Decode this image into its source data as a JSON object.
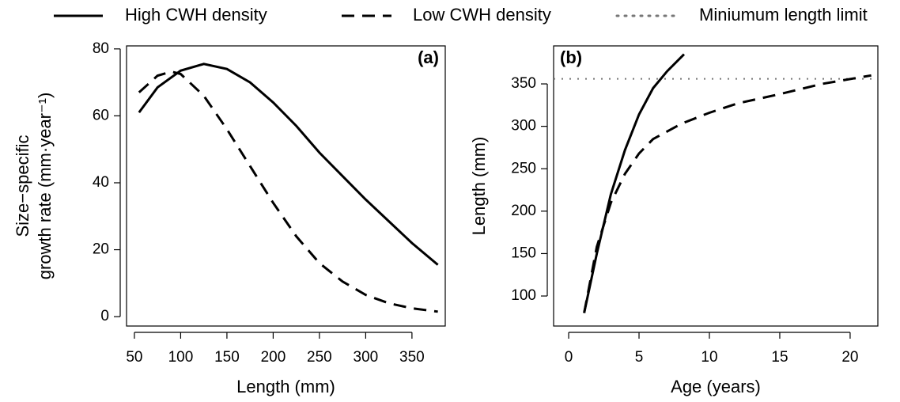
{
  "chart_data": [
    {
      "type": "line",
      "panel_label": "(a)",
      "x_label": "Length (mm)",
      "y_label": [
        "Size−specific",
        "growth rate (mm·year⁻¹)"
      ],
      "xlim": [
        41.5,
        386
      ],
      "ylim": [
        -2.8,
        80.9
      ],
      "xticks": [
        50,
        100,
        150,
        200,
        250,
        300,
        350
      ],
      "yticks": [
        0,
        20,
        40,
        60,
        80
      ],
      "series": [
        {
          "color": "#000000",
          "linestyle": "solid",
          "x": [
            55,
            75,
            100,
            125,
            150,
            175,
            200,
            225,
            250,
            275,
            300,
            325,
            350,
            378
          ],
          "values": [
            61,
            68.5,
            73.5,
            75.5,
            74,
            70,
            64,
            57,
            49,
            42,
            35,
            28.5,
            22,
            15.5
          ]
        },
        {
          "color": "#000000",
          "linestyle": "dashed",
          "x": [
            55,
            75,
            90,
            100,
            125,
            150,
            175,
            200,
            225,
            250,
            275,
            300,
            325,
            350,
            378
          ],
          "values": [
            67,
            72,
            73.2,
            72.5,
            66,
            56,
            45,
            34,
            24,
            16,
            10.5,
            6.5,
            4,
            2.5,
            1.5
          ]
        }
      ]
    },
    {
      "type": "line",
      "panel_label": "(b)",
      "x_label": "Age (years)",
      "y_label": [
        "Length (mm)"
      ],
      "xlim": [
        -1.07,
        21.97
      ],
      "ylim": [
        64.6,
        394.8
      ],
      "xticks": [
        0,
        5,
        10,
        15,
        20
      ],
      "yticks": [
        100,
        150,
        200,
        250,
        300,
        350
      ],
      "series": [
        {
          "name": "High CWH density",
          "color": "#000000",
          "linestyle": "solid",
          "x": [
            1.1,
            2,
            3,
            4,
            5,
            6,
            7,
            8.2
          ],
          "values": [
            80,
            150,
            220,
            272,
            314,
            345,
            365,
            385
          ]
        },
        {
          "name": "Low CWH density",
          "color": "#000000",
          "linestyle": "dashed",
          "x": [
            1.1,
            2,
            3,
            4,
            5,
            6,
            8,
            10,
            12,
            15,
            18,
            21.5
          ],
          "values": [
            80,
            158,
            210,
            244,
            268,
            285,
            303,
            316,
            327,
            338,
            350,
            360
          ]
        }
      ],
      "reference_line": {
        "name": "Miniumum length limit",
        "value": 356,
        "color": "#777777",
        "linestyle": "dotted"
      }
    }
  ]
}
